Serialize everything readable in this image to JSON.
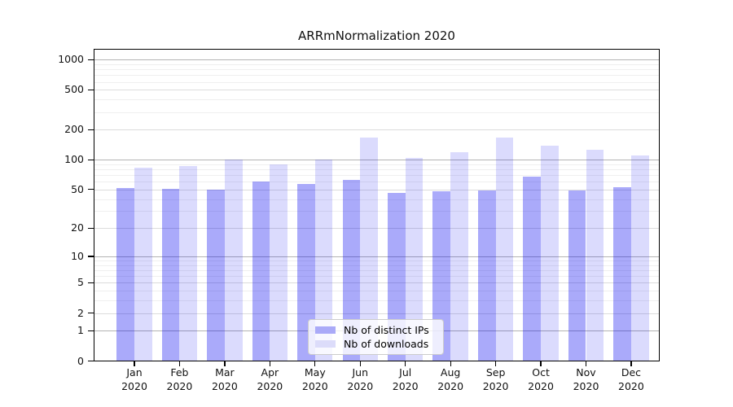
{
  "chart_data": {
    "type": "bar",
    "title": "ARRmNormalization 2020",
    "year": "2020",
    "categories": [
      "Jan",
      "Feb",
      "Mar",
      "Apr",
      "May",
      "Jun",
      "Jul",
      "Aug",
      "Sep",
      "Oct",
      "Nov",
      "Dec"
    ],
    "series": [
      {
        "name": "Nb of distinct IPs",
        "values": [
          52,
          51,
          50,
          60,
          57,
          63,
          46,
          48,
          49,
          68,
          49,
          53
        ],
        "fill": "rgba(0,0,240,0.335)",
        "swatch": "#aaaaf8"
      },
      {
        "name": "Nb of downloads",
        "values": [
          83,
          87,
          100,
          89,
          100,
          168,
          104,
          120,
          168,
          139,
          127,
          111
        ],
        "fill": "rgba(0,0,240,0.14)",
        "swatch": "#dcdcfa"
      }
    ],
    "yticks": [
      0,
      1,
      2,
      5,
      10,
      20,
      50,
      100,
      200,
      500,
      1000
    ],
    "yscale": "log1p",
    "ylim": [
      0,
      1280
    ],
    "xlabel": "",
    "ylabel": "",
    "grid": "horizontal",
    "legend_position": "lower-center",
    "colors": {
      "axis": "#000000",
      "grid_major": "#b3b3b3",
      "grid_mid": "#dcdcdc",
      "grid_minor": "#efefef",
      "background": "#ffffff"
    }
  }
}
